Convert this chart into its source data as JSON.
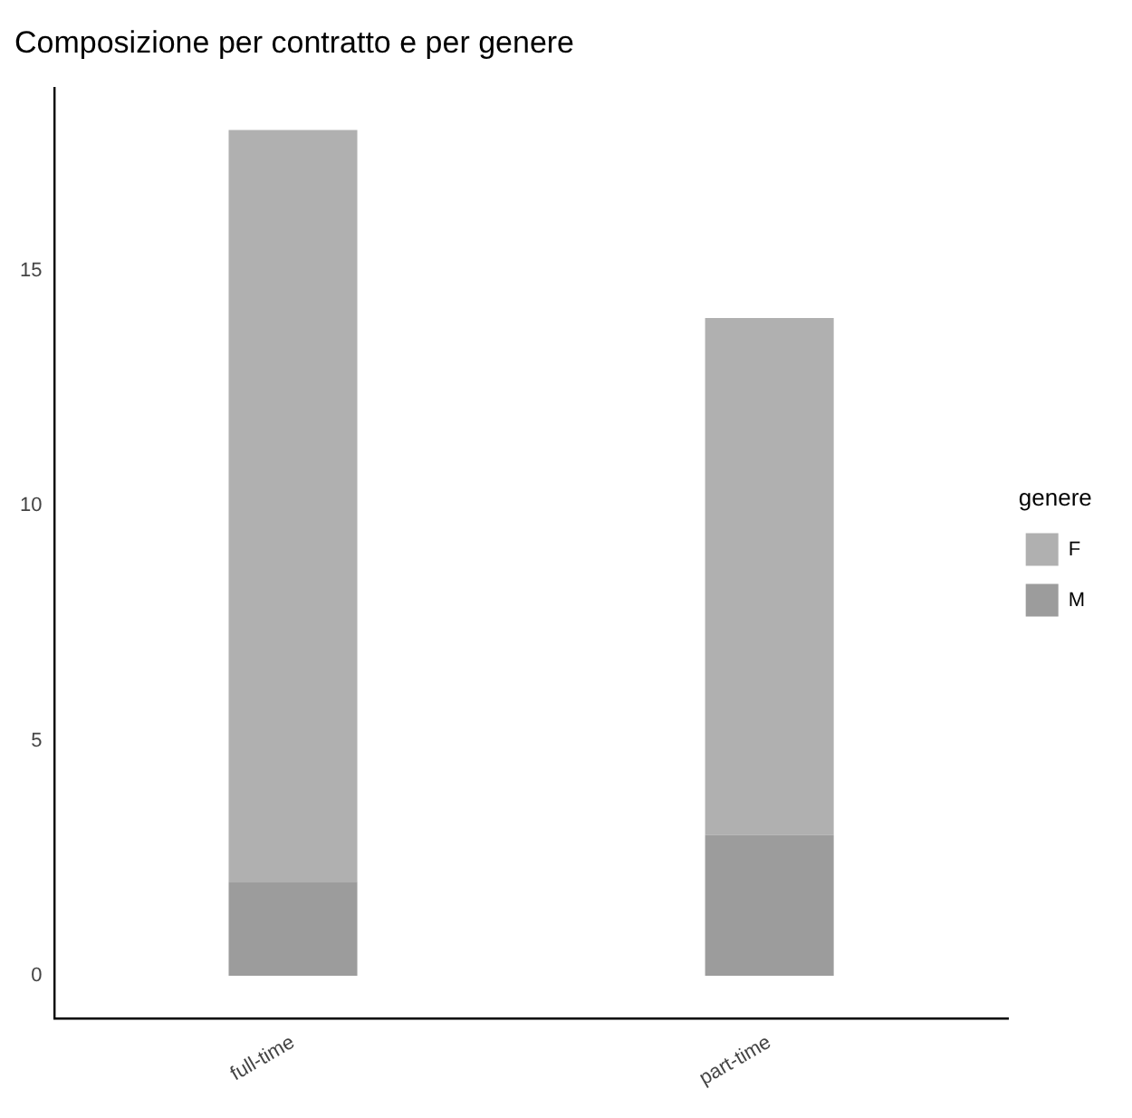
{
  "chart_data": {
    "type": "bar",
    "title": "Composizione per contratto e per genere",
    "legend_title": "genere",
    "categories": [
      "full-time",
      "part-time"
    ],
    "stacked": true,
    "legend": "right",
    "grid": false,
    "series": [
      {
        "name": "M",
        "color": "#9c9c9c",
        "values": [
          2,
          3
        ]
      },
      {
        "name": "F",
        "color": "#b0b0b0",
        "values": [
          16,
          11
        ]
      }
    ],
    "ylim": [
      -0.9,
      18.9
    ],
    "yticks": [
      0,
      5,
      10,
      15
    ]
  }
}
